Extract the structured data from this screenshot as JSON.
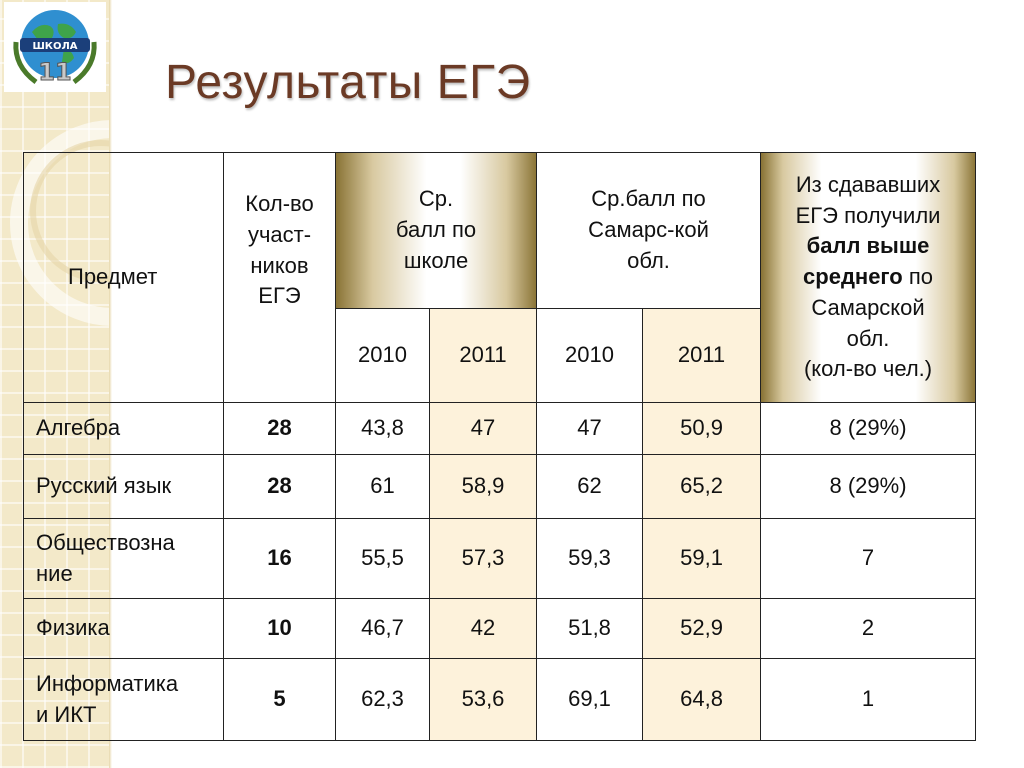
{
  "logo": {
    "text": "ШКОЛА",
    "number": "11"
  },
  "title": "Результаты ЕГЭ",
  "table": {
    "header": {
      "subject": "Предмет",
      "participants": [
        "Кол-во",
        "участ-",
        "ников",
        "ЕГЭ"
      ],
      "school_avg": [
        "Ср.",
        "балл по",
        "школе"
      ],
      "region_avg": [
        "Ср.балл по",
        "Самарс-кой",
        "обл."
      ],
      "above_pre": [
        "Из сдававших",
        "ЕГЭ получили"
      ],
      "above_bold1": "балл выше",
      "above_bold2": "среднего",
      "above_post": [
        " по",
        "Самарской",
        "обл.",
        "(кол-во чел.)"
      ],
      "years": [
        "2010",
        "2011",
        "2010",
        "2011"
      ]
    },
    "rows": [
      {
        "subject": [
          "Алгебра"
        ],
        "count": "28",
        "s2010": "43,8",
        "s2011": "47",
        "r2010": "47",
        "r2011": "50,9",
        "above": "8 (29%)"
      },
      {
        "subject": [
          "Русский язык"
        ],
        "count": "28",
        "s2010": "61",
        "s2011": "58,9",
        "r2010": "62",
        "r2011": "65,2",
        "above": "8 (29%)"
      },
      {
        "subject": [
          "Обществозна",
          "ние"
        ],
        "count": "16",
        "s2010": "55,5",
        "s2011": "57,3",
        "r2010": "59,3",
        "r2011": "59,1",
        "above": "7"
      },
      {
        "subject": [
          "Физика"
        ],
        "count": "10",
        "s2010": "46,7",
        "s2011": "42",
        "r2010": "51,8",
        "r2011": "52,9",
        "above": "2"
      },
      {
        "subject": [
          "Информатика",
          "и ИКТ"
        ],
        "count": "5",
        "s2010": "62,3",
        "s2011": "53,6",
        "r2010": "69,1",
        "r2011": "64,8",
        "above": "1"
      }
    ]
  },
  "colors": {
    "title": "#6b3a25",
    "strip": "#f3e9c9",
    "cream": "#fdf2db",
    "gold": "#8a7436"
  }
}
